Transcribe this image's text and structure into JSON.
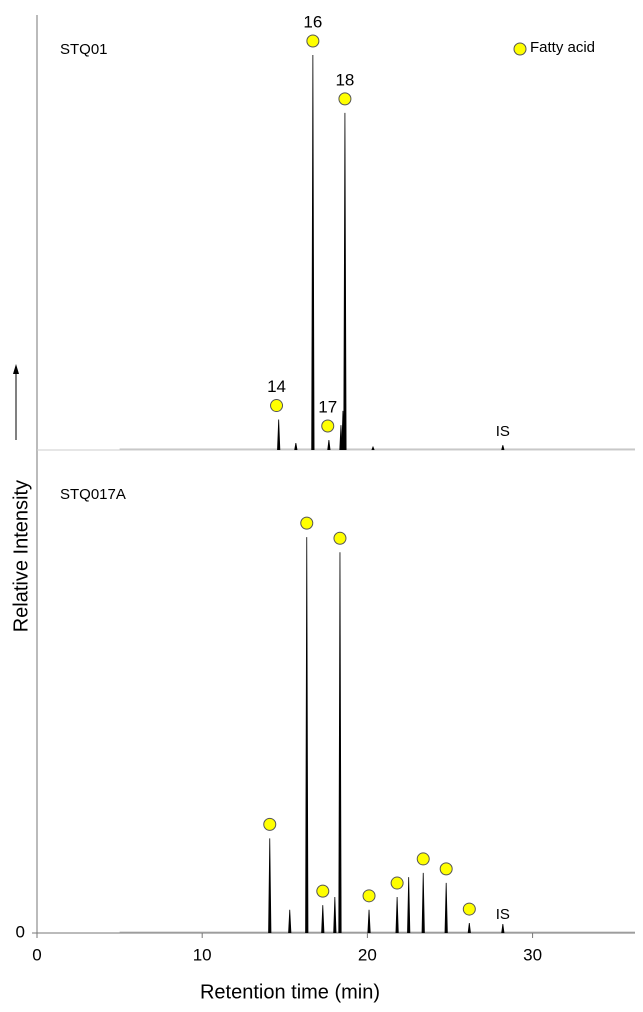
{
  "chart_data": {
    "type": "chromatogram",
    "xlabel": "Retention time (min)",
    "ylabel": "Relative Intensity",
    "xlim": [
      0,
      36.2
    ],
    "xticks": [
      0,
      10,
      20,
      30
    ],
    "legend": "Fatty acid",
    "marker_color": "#ffff00",
    "line_color": "#000000",
    "panels": [
      {
        "name": "STQ01",
        "ylim": [
          0,
          100
        ],
        "yticks": [],
        "x": [
          14.63,
          15.67,
          16.7,
          17.67,
          18.4,
          18.52,
          18.64,
          20.34,
          28.2
        ],
        "values": [
          7,
          1.6,
          90.8,
          2.3,
          5.7,
          9,
          77.5,
          0.7,
          1.1
        ],
        "markers": {
          "x": [
            14.5,
            16.7,
            17.6,
            18.64
          ],
          "labels": [
            "14",
            "16",
            "17",
            "18"
          ]
        },
        "is_label": {
          "x": 28.2,
          "text": "IS"
        }
      },
      {
        "name": "STQ017A",
        "ylim": [
          0,
          100
        ],
        "yticks": [
          0
        ],
        "x": [
          14.09,
          15.3,
          16.33,
          17.3,
          18.03,
          18.34,
          20.1,
          21.8,
          22.5,
          23.38,
          24.77,
          26.17,
          28.2
        ],
        "values": [
          20,
          4.9,
          83.7,
          5.9,
          7.6,
          80.5,
          4.9,
          7.6,
          11.8,
          12.7,
          10.6,
          2.1,
          1.9
        ],
        "markers": {
          "x": [
            14.09,
            16.33,
            17.3,
            18.34,
            20.1,
            21.8,
            23.38,
            24.77,
            26.17
          ]
        },
        "is_label": {
          "x": 28.2,
          "text": "IS"
        }
      }
    ]
  }
}
